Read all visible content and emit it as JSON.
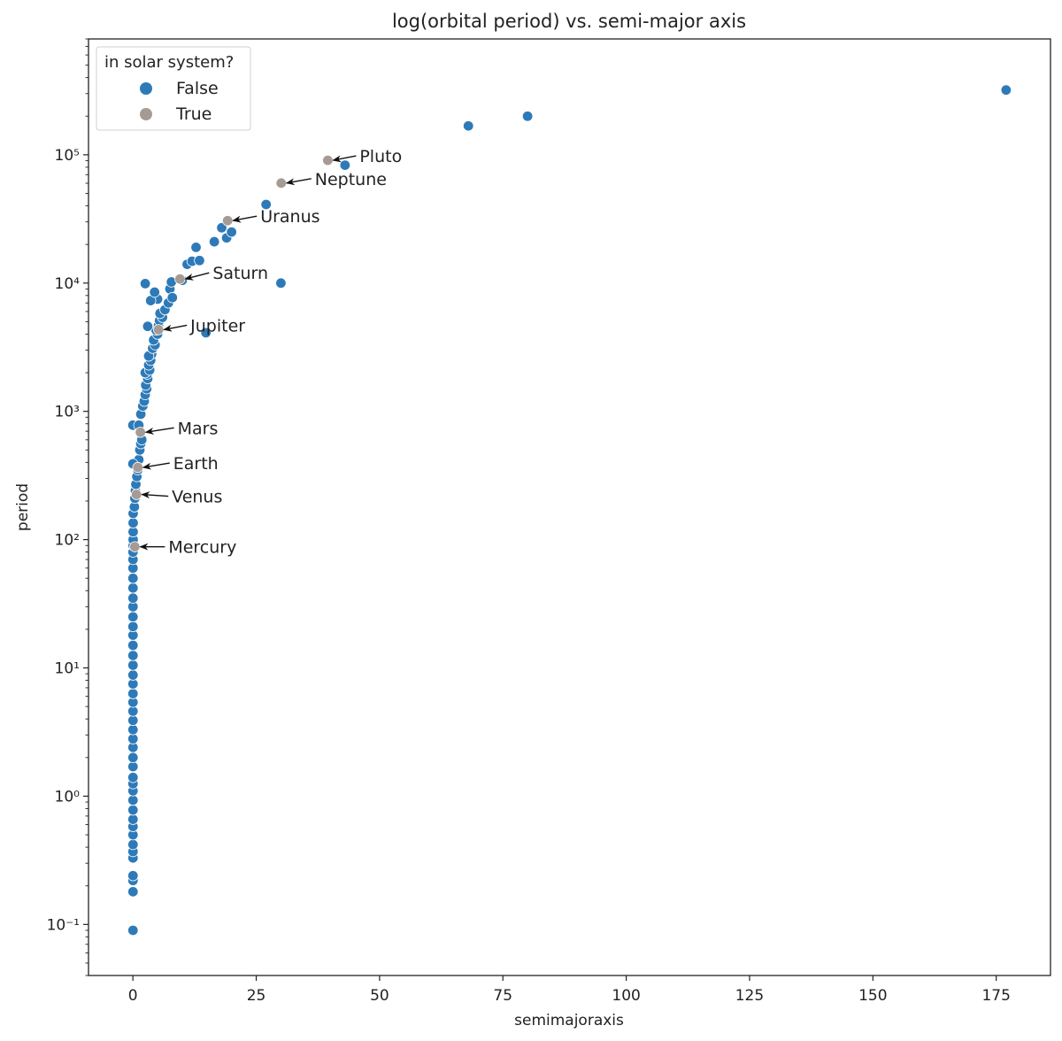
{
  "chart_data": {
    "type": "scatter",
    "title": "log(orbital period) vs. semi-major axis",
    "xlabel": "semimajoraxis",
    "ylabel": "period",
    "xlim": [
      -9,
      186
    ],
    "ylim": [
      0.04,
      800000
    ],
    "yscale": "log",
    "x_ticks": [
      0,
      25,
      50,
      75,
      100,
      125,
      150,
      175
    ],
    "y_ticks": [
      {
        "value": 0.1,
        "label": "10⁻¹"
      },
      {
        "value": 1,
        "label": "10⁰"
      },
      {
        "value": 10,
        "label": "10¹"
      },
      {
        "value": 100,
        "label": "10²"
      },
      {
        "value": 1000,
        "label": "10³"
      },
      {
        "value": 10000,
        "label": "10⁴"
      },
      {
        "value": 100000,
        "label": "10⁵"
      }
    ],
    "grid": false,
    "legend": {
      "title": "in solar system?",
      "placement": "top-left",
      "entries": [
        {
          "label": "False",
          "color": "#2e7ab8"
        },
        {
          "label": "True",
          "color": "#a59b94"
        }
      ]
    },
    "series": [
      {
        "name": "False",
        "color": "#2e7ab8",
        "points": [
          [
            0.02,
            0.09
          ],
          [
            0.02,
            0.18
          ],
          [
            0.02,
            0.22
          ],
          [
            0.02,
            0.24
          ],
          [
            0.02,
            0.33
          ],
          [
            0.02,
            0.37
          ],
          [
            0.02,
            0.42
          ],
          [
            0.02,
            0.5
          ],
          [
            0.02,
            0.58
          ],
          [
            0.02,
            0.66
          ],
          [
            0.02,
            0.78
          ],
          [
            0.02,
            0.93
          ],
          [
            0.02,
            1.1
          ],
          [
            0.02,
            1.25
          ],
          [
            0.02,
            1.4
          ],
          [
            0.02,
            1.7
          ],
          [
            0.02,
            2.0
          ],
          [
            0.02,
            2.4
          ],
          [
            0.02,
            2.8
          ],
          [
            0.02,
            3.3
          ],
          [
            0.02,
            3.9
          ],
          [
            0.02,
            4.6
          ],
          [
            0.02,
            5.4
          ],
          [
            0.02,
            6.3
          ],
          [
            0.02,
            7.5
          ],
          [
            0.02,
            8.8
          ],
          [
            0.02,
            10.5
          ],
          [
            0.02,
            12.5
          ],
          [
            0.02,
            15
          ],
          [
            0.02,
            18
          ],
          [
            0.02,
            21
          ],
          [
            0.02,
            25
          ],
          [
            0.02,
            30
          ],
          [
            0.02,
            35
          ],
          [
            0.02,
            42
          ],
          [
            0.02,
            50
          ],
          [
            0.02,
            60
          ],
          [
            0.02,
            70
          ],
          [
            0.02,
            80
          ],
          [
            0.05,
            90
          ],
          [
            0.05,
            100
          ],
          [
            0.05,
            115
          ],
          [
            0.05,
            135
          ],
          [
            0.05,
            160
          ],
          [
            0.3,
            180
          ],
          [
            0.4,
            210
          ],
          [
            0.5,
            240
          ],
          [
            0.6,
            270
          ],
          [
            0.8,
            310
          ],
          [
            1.0,
            350
          ],
          [
            1.2,
            420
          ],
          [
            1.4,
            500
          ],
          [
            1.6,
            560
          ],
          [
            1.8,
            600
          ],
          [
            0.0,
            780
          ],
          [
            0.0,
            390
          ],
          [
            1.2,
            780
          ],
          [
            1.6,
            950
          ],
          [
            2.0,
            1100
          ],
          [
            2.3,
            1200
          ],
          [
            2.5,
            1350
          ],
          [
            2.8,
            1500
          ],
          [
            2.6,
            1600
          ],
          [
            3.0,
            1800
          ],
          [
            2.9,
            1950
          ],
          [
            2.5,
            2000
          ],
          [
            3.4,
            2100
          ],
          [
            3.2,
            2300
          ],
          [
            3.6,
            2500
          ],
          [
            3.8,
            2800
          ],
          [
            3.2,
            2700
          ],
          [
            4.0,
            3100
          ],
          [
            4.5,
            3300
          ],
          [
            4.2,
            3600
          ],
          [
            5.0,
            4000
          ],
          [
            4.7,
            4300
          ],
          [
            5.2,
            4700
          ],
          [
            5.4,
            5100
          ],
          [
            6.0,
            5400
          ],
          [
            5.5,
            5800
          ],
          [
            6.5,
            6200
          ],
          [
            7.2,
            7000
          ],
          [
            5.0,
            7500
          ],
          [
            3.6,
            7300
          ],
          [
            4.4,
            8500
          ],
          [
            7.5,
            9000
          ],
          [
            8.0,
            7700
          ],
          [
            3.0,
            4600
          ],
          [
            2.5,
            9900
          ],
          [
            7.8,
            10200
          ],
          [
            10.0,
            10500
          ],
          [
            11.0,
            14000
          ],
          [
            12.0,
            14800
          ],
          [
            13.5,
            15000
          ],
          [
            12.8,
            19000
          ],
          [
            14.8,
            4100
          ],
          [
            16.5,
            21000
          ],
          [
            18.0,
            27000
          ],
          [
            19.0,
            22500
          ],
          [
            20.0,
            25000
          ],
          [
            27.0,
            41000
          ],
          [
            30.0,
            10000
          ],
          [
            43.0,
            83000
          ],
          [
            68.0,
            168000
          ],
          [
            80.0,
            200000
          ],
          [
            177.0,
            320000
          ]
        ]
      },
      {
        "name": "True",
        "color": "#a59b94",
        "points": [
          [
            0.39,
            88
          ],
          [
            0.72,
            225
          ],
          [
            1.0,
            365
          ],
          [
            1.52,
            687
          ],
          [
            5.2,
            4333
          ],
          [
            9.54,
            10759
          ],
          [
            19.2,
            30687
          ],
          [
            30.06,
            60190
          ],
          [
            39.5,
            90560
          ]
        ]
      }
    ],
    "annotations": [
      {
        "text": "Mercury",
        "x": 0.39,
        "y": 88
      },
      {
        "text": "Venus",
        "x": 0.72,
        "y": 225
      },
      {
        "text": "Earth",
        "x": 1.0,
        "y": 365
      },
      {
        "text": "Mars",
        "x": 1.52,
        "y": 687
      },
      {
        "text": "Jupiter",
        "x": 5.2,
        "y": 4333
      },
      {
        "text": "Saturn",
        "x": 9.54,
        "y": 10759
      },
      {
        "text": "Uranus",
        "x": 19.2,
        "y": 30687
      },
      {
        "text": "Neptune",
        "x": 30.06,
        "y": 60190
      },
      {
        "text": "Pluto",
        "x": 39.5,
        "y": 90560
      }
    ]
  }
}
